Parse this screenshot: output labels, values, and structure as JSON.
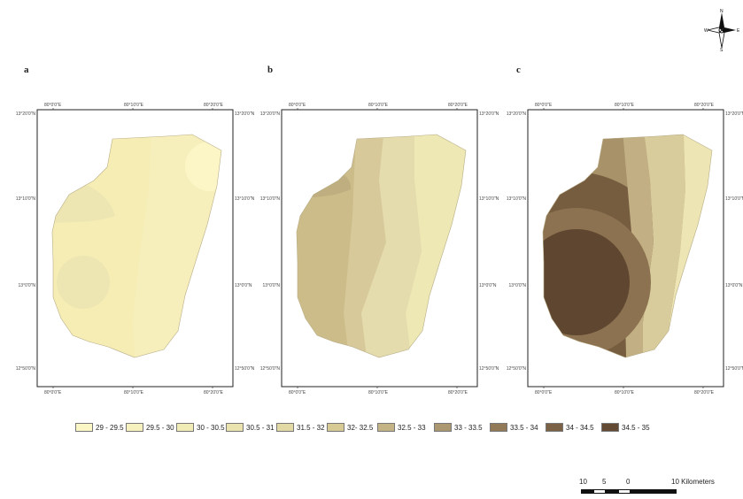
{
  "panels": [
    {
      "label": "a",
      "top_ticks": [
        "80°0'0\"E",
        "80°10'0\"E",
        "80°20'0\"E"
      ],
      "bottom_ticks": [
        "80°0'0\"E",
        "80°10'0\"E",
        "80°20'0\"E"
      ],
      "left_ticks": [
        "13°20'0\"N",
        "13°10'0\"N",
        "13°0'0\"N",
        "12°50'0\"N"
      ],
      "right_ticks": [
        "13°20'0\"N",
        "13°10'0\"N",
        "13°0'0\"N",
        "12°50'0\"N"
      ],
      "zones": [
        "#f9f2c6",
        "#f6efbc",
        "#f5edb4",
        "#fcf6c6",
        "#ede6b2"
      ]
    },
    {
      "label": "b",
      "top_ticks": [
        "80°0'0\"E",
        "80°10'0\"E",
        "80°20'0\"E"
      ],
      "bottom_ticks": [
        "80°0'0\"E",
        "80°10'0\"E",
        "80°20'0\"E"
      ],
      "left_ticks": [
        "13°20'0\"N",
        "13°10'0\"N",
        "13°0'0\"N",
        "12°50'0\"N"
      ],
      "right_ticks": [
        "13°20'0\"N",
        "13°10'0\"N",
        "13°0'0\"N",
        "12°50'0\"N"
      ],
      "zones": [
        "#d7c99a",
        "#ccbc89",
        "#e5dcae",
        "#ede8b4",
        "#bfae7f"
      ]
    },
    {
      "label": "c",
      "top_ticks": [
        "80°0'0\"E",
        "80°10'0\"E",
        "80°20'0\"E"
      ],
      "bottom_ticks": [
        "80°0'0\"E",
        "80°10'0\"E",
        "80°20'0\"E"
      ],
      "left_ticks": [
        "13°20'0\"N",
        "13°10'0\"N",
        "13°0'0\"N",
        "12°50'0\"N"
      ],
      "right_ticks": [
        "13°20'0\"N",
        "13°10'0\"N",
        "13°0'0\"N",
        "12°50'0\"N"
      ],
      "zones": [
        "#a8926a",
        "#8c7250",
        "#5e4630",
        "#d9cc9c",
        "#ede6b4",
        "#c2b084",
        "#765d40"
      ]
    }
  ],
  "legend": [
    {
      "label": "29 - 29.5",
      "color": "#fbf6c6"
    },
    {
      "label": "29.5 - 30",
      "color": "#f7f1bd"
    },
    {
      "label": "30 - 30.5",
      "color": "#f1ebb5"
    },
    {
      "label": "30.5 - 31",
      "color": "#ebe3ad"
    },
    {
      "label": "31.5 - 32",
      "color": "#e3d9a5"
    },
    {
      "label": "32- 32.5",
      "color": "#d7ca95"
    },
    {
      "label": "32.5 - 33",
      "color": "#c4b384"
    },
    {
      "label": "33 - 33.5",
      "color": "#ac9870"
    },
    {
      "label": "33.5 - 34",
      "color": "#927958"
    },
    {
      "label": "34 - 34.5",
      "color": "#7b6145"
    },
    {
      "label": "34.5 - 35",
      "color": "#634a33"
    }
  ],
  "scalebar": {
    "labels": [
      "10",
      "5",
      "0",
      "10 Kilometers"
    ]
  },
  "north_arrow": {
    "n": "N",
    "s": "S",
    "e": "E",
    "w": "W"
  }
}
